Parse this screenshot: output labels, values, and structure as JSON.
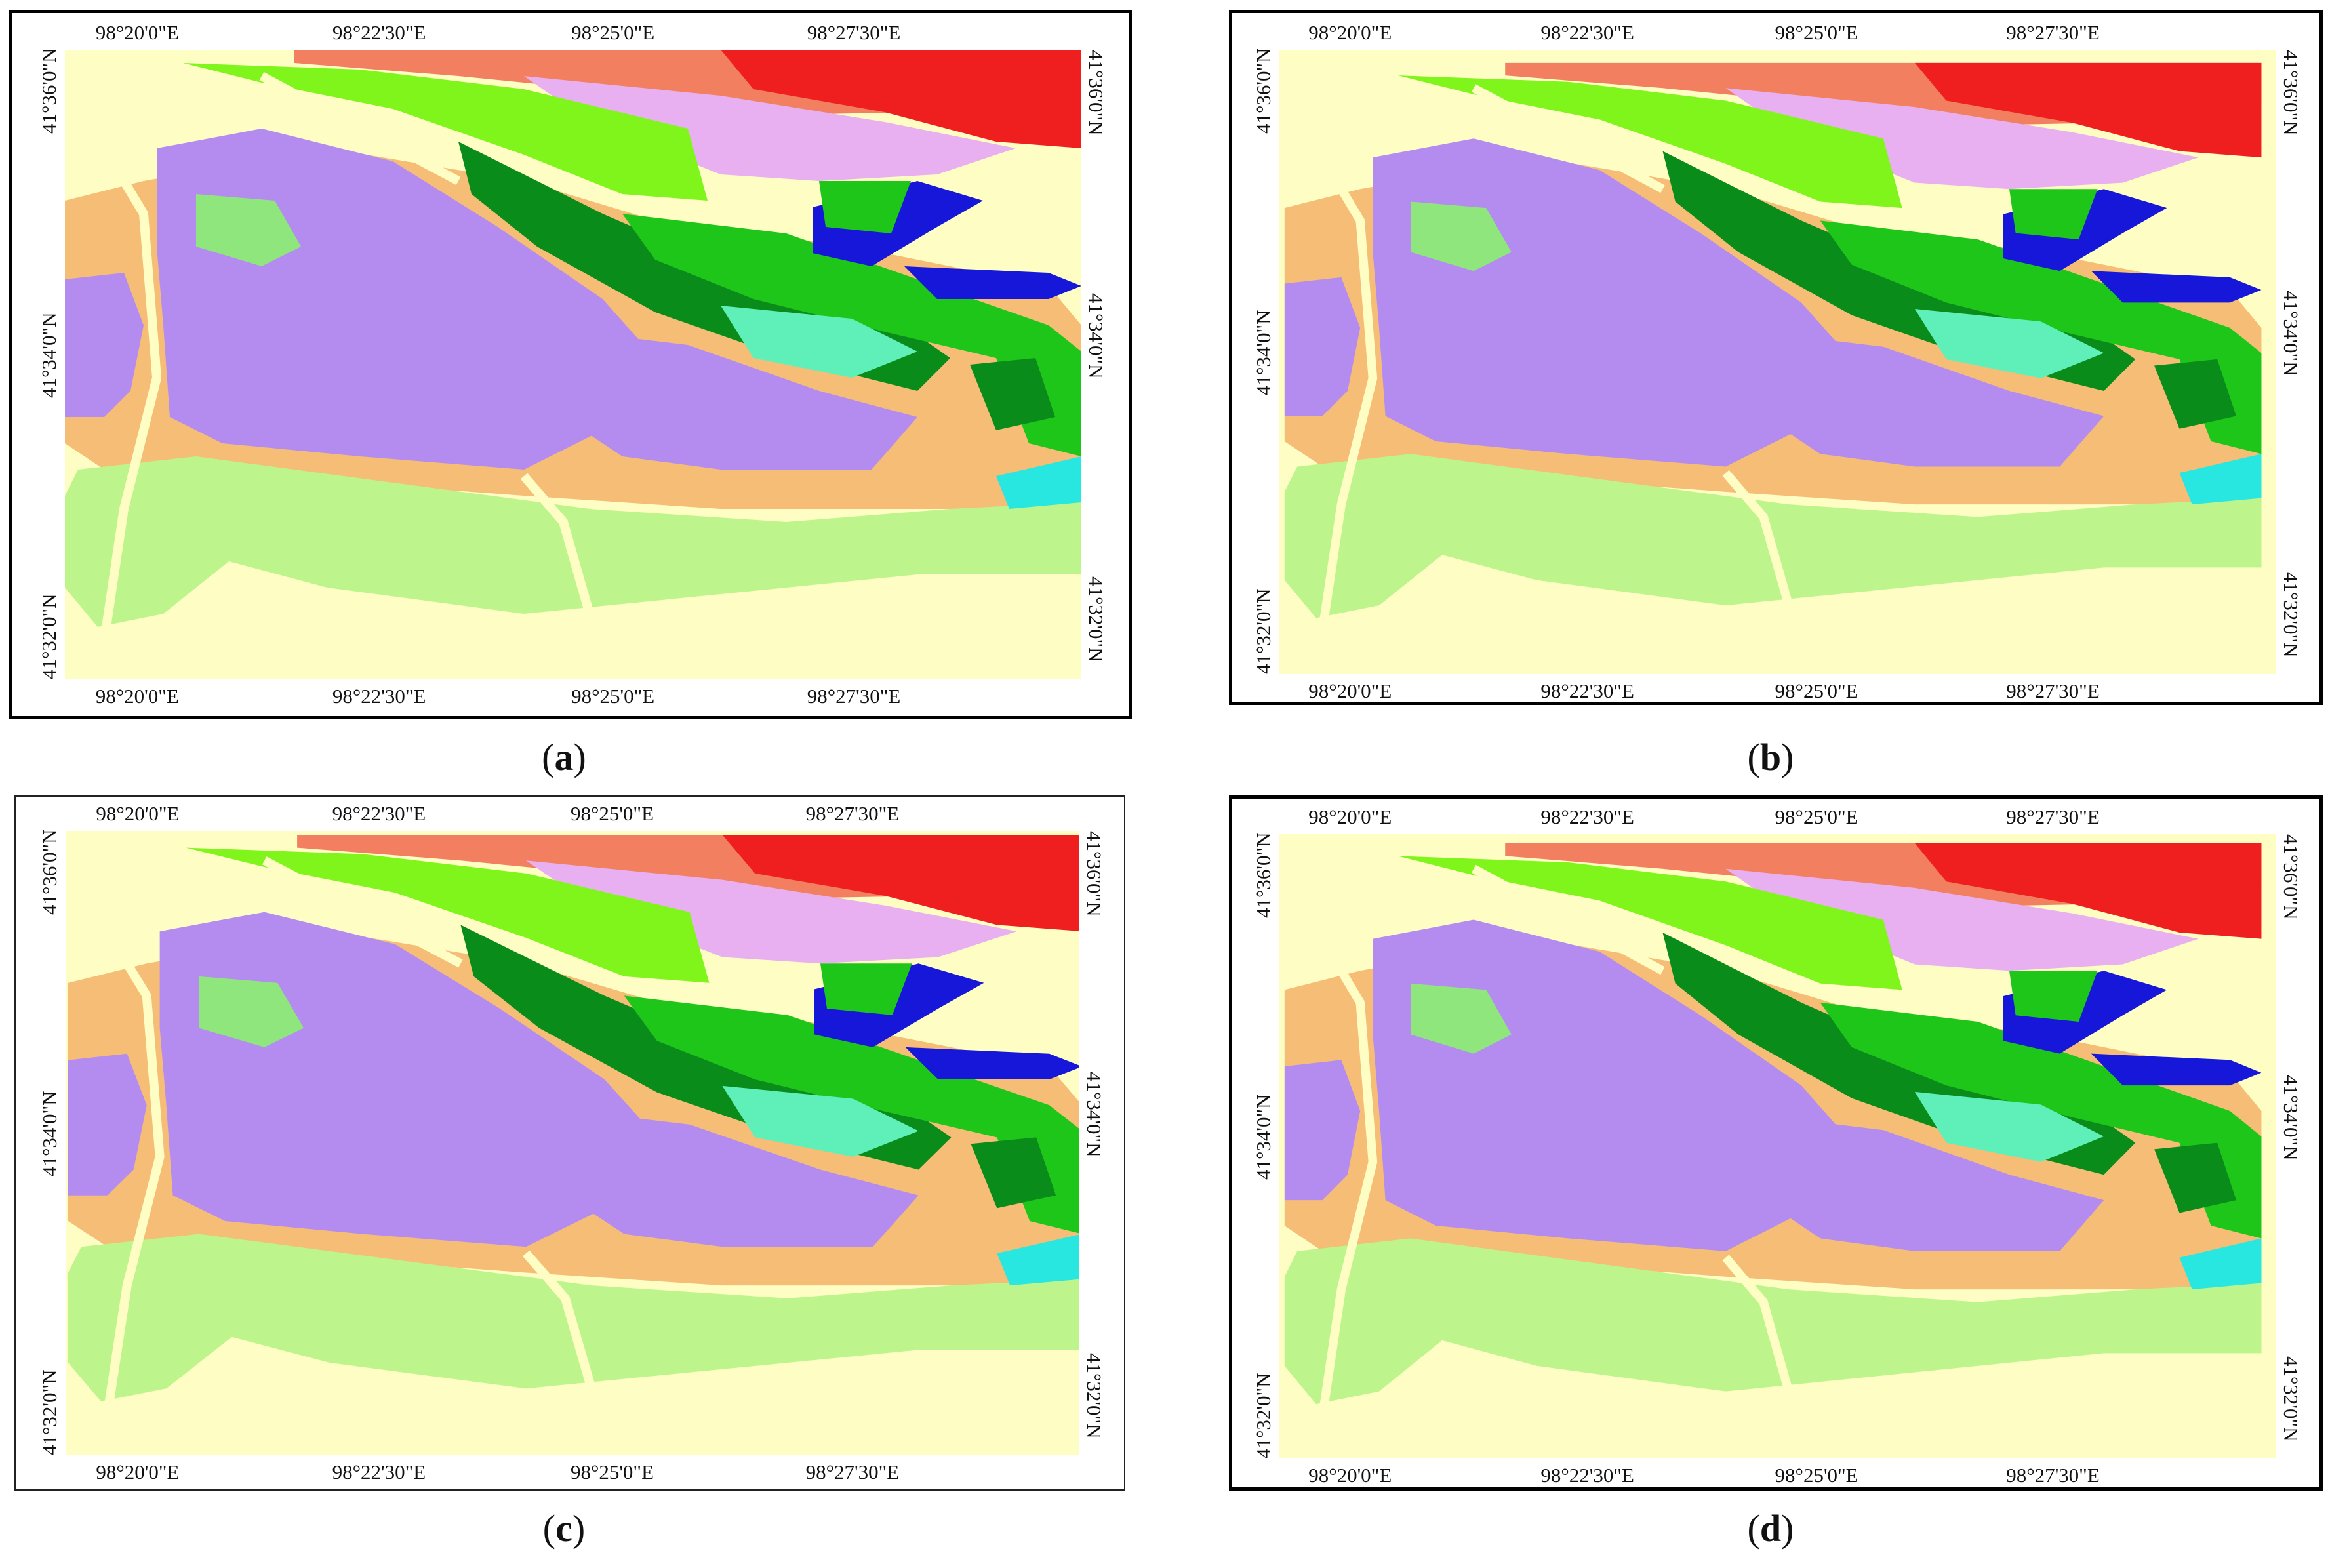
{
  "panels": [
    {
      "id": "a",
      "caption_letter": "a"
    },
    {
      "id": "b",
      "caption_letter": "b"
    },
    {
      "id": "c",
      "caption_letter": "c"
    },
    {
      "id": "d",
      "caption_letter": "d"
    }
  ],
  "axes": {
    "longitude_ticks": [
      "98°20'0\"E",
      "98°22'30\"E",
      "98°25'0\"E",
      "98°27'30\"E"
    ],
    "latitude_ticks": [
      "41°36'0\"N",
      "41°34'0\"N",
      "41°32'0\"N"
    ]
  },
  "class_colors": {
    "background_sand": "#fdfdc4",
    "lavender": "#b48cf0",
    "orange_tan": "#f5bd76",
    "light_green": "#bdf58c",
    "pale_green": "#8fe67d",
    "bright_green": "#1fc61a",
    "dark_green": "#0a8c1a",
    "lime": "#80f51c",
    "aquamarine": "#5ef0b8",
    "cyan": "#28e6e0",
    "blue": "#1717d9",
    "pink_lilac": "#e8b0f0",
    "red": "#f01f1f",
    "salmon": "#f28060"
  }
}
